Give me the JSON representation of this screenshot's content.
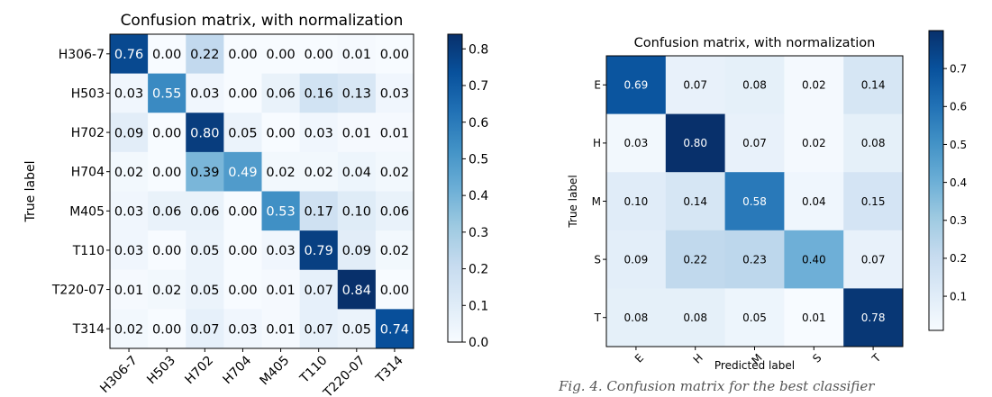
{
  "chart_data": [
    {
      "type": "heatmap",
      "title": "Confusion matrix, with normalization",
      "ylabel": "True label",
      "xlabel": "",
      "colormap": "Blues",
      "row_labels": [
        "H306-7",
        "H503",
        "H702",
        "H704",
        "M405",
        "T110",
        "T220-07",
        "T314"
      ],
      "col_labels": [
        "H306-7",
        "H503",
        "H702",
        "H704",
        "M405",
        "T110",
        "T220-07",
        "T314"
      ],
      "values": [
        [
          0.76,
          0.0,
          0.22,
          0.0,
          0.0,
          0.0,
          0.01,
          0.0
        ],
        [
          0.03,
          0.55,
          0.03,
          0.0,
          0.06,
          0.16,
          0.13,
          0.03
        ],
        [
          0.09,
          0.0,
          0.8,
          0.05,
          0.0,
          0.03,
          0.01,
          0.01
        ],
        [
          0.02,
          0.0,
          0.39,
          0.49,
          0.02,
          0.02,
          0.04,
          0.02
        ],
        [
          0.03,
          0.06,
          0.06,
          0.0,
          0.53,
          0.17,
          0.1,
          0.06
        ],
        [
          0.03,
          0.0,
          0.05,
          0.0,
          0.03,
          0.79,
          0.09,
          0.02
        ],
        [
          0.01,
          0.02,
          0.05,
          0.0,
          0.01,
          0.07,
          0.84,
          0.0
        ],
        [
          0.02,
          0.0,
          0.07,
          0.03,
          0.01,
          0.07,
          0.05,
          0.74
        ]
      ],
      "color_range": [
        0.0,
        0.84
      ],
      "colorbar_ticks": [
        0.0,
        0.1,
        0.2,
        0.3,
        0.4,
        0.5,
        0.6,
        0.7,
        0.8
      ],
      "colorbar_tick_labels": [
        "0.0",
        "0.1",
        "0.2",
        "0.3",
        "0.4",
        "0.5",
        "0.6",
        "0.7",
        "0.8"
      ]
    },
    {
      "type": "heatmap",
      "title": "Confusion matrix, with normalization",
      "ylabel": "True label",
      "xlabel": "Predicted label",
      "colormap": "Blues",
      "row_labels": [
        "E",
        "H",
        "M",
        "S",
        "T"
      ],
      "col_labels": [
        "E",
        "H",
        "M",
        "S",
        "T"
      ],
      "values": [
        [
          0.69,
          0.07,
          0.08,
          0.02,
          0.14
        ],
        [
          0.03,
          0.8,
          0.07,
          0.02,
          0.08
        ],
        [
          0.1,
          0.14,
          0.58,
          0.04,
          0.15
        ],
        [
          0.09,
          0.22,
          0.23,
          0.4,
          0.07
        ],
        [
          0.08,
          0.08,
          0.05,
          0.01,
          0.78
        ]
      ],
      "color_range": [
        0.01,
        0.8
      ],
      "colorbar_ticks": [
        0.1,
        0.2,
        0.3,
        0.4,
        0.5,
        0.6,
        0.7
      ],
      "colorbar_tick_labels": [
        "0.1",
        "0.2",
        "0.3",
        "0.4",
        "0.5",
        "0.6",
        "0.7"
      ]
    }
  ],
  "caption_fragment": "Fig. 4. Confusion matrix for the best classifier"
}
